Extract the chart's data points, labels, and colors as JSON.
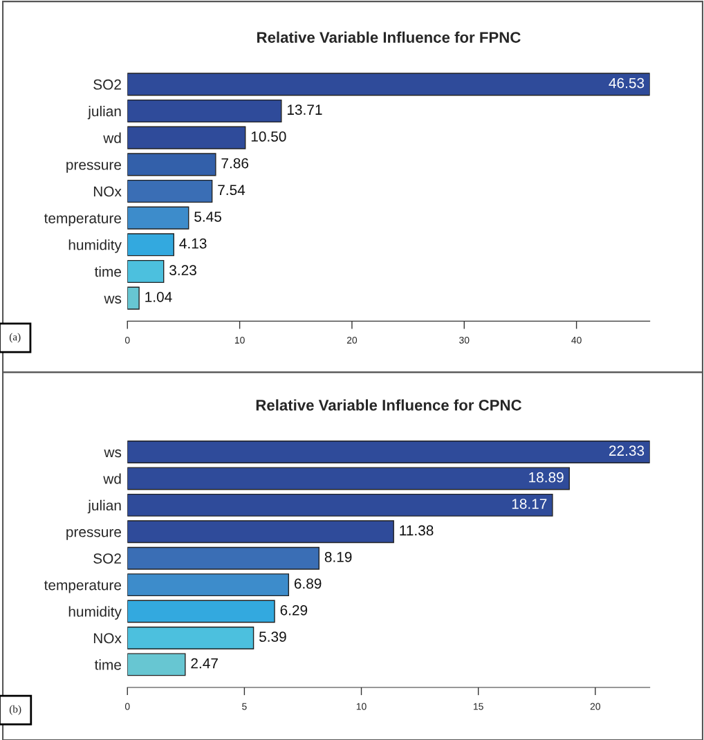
{
  "chart_data": [
    {
      "type": "bar",
      "orientation": "horizontal",
      "title": "Relative Variable Influence for FPNC",
      "categories": [
        "SO2",
        "julian",
        "wd",
        "pressure",
        "NOx",
        "temperature",
        "humidity",
        "time",
        "ws"
      ],
      "values": [
        46.53,
        13.71,
        10.5,
        7.86,
        7.54,
        5.45,
        4.13,
        3.23,
        1.04
      ],
      "value_labels": [
        "46.53",
        "13.71",
        "10.50",
        "7.86",
        "7.54",
        "5.45",
        "4.13",
        "3.23",
        "1.04"
      ],
      "colors": [
        "#2f4b9a",
        "#2f4b9a",
        "#2f4b9a",
        "#3360aa",
        "#3a6eb5",
        "#3d8ccb",
        "#33a9df",
        "#4cc0de",
        "#67c6d2"
      ],
      "xlim": [
        0,
        46.53
      ],
      "xticks": [
        0,
        10,
        20,
        30,
        40
      ],
      "grid": false,
      "annotations": [
        "(a)"
      ]
    },
    {
      "type": "bar",
      "orientation": "horizontal",
      "title": "Relative Variable Influence for CPNC",
      "categories": [
        "ws",
        "wd",
        "julian",
        "pressure",
        "SO2",
        "temperature",
        "humidity",
        "NOx",
        "time"
      ],
      "values": [
        22.33,
        18.89,
        18.17,
        11.38,
        8.19,
        6.89,
        6.29,
        5.39,
        2.47
      ],
      "value_labels": [
        "22.33",
        "18.89",
        "18.17",
        "11.38",
        "8.19",
        "6.89",
        "6.29",
        "5.39",
        "2.47"
      ],
      "colors": [
        "#2f4b9a",
        "#2f4b9a",
        "#2f4b9a",
        "#2f4b9a",
        "#3a6eb5",
        "#3d8ccb",
        "#33a9df",
        "#4cc0de",
        "#67c6d2"
      ],
      "xlim": [
        0,
        22.33
      ],
      "xticks": [
        0,
        5,
        10,
        15,
        20
      ],
      "grid": false,
      "annotations": [
        "(b)"
      ]
    }
  ]
}
